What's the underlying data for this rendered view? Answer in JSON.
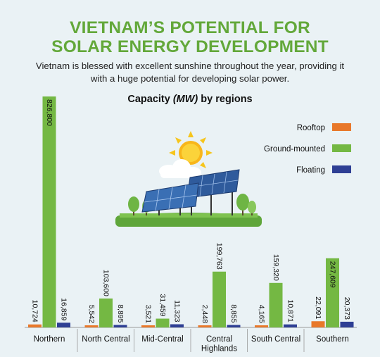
{
  "header": {
    "title_line1": "VIETNAM’S POTENTIAL FOR",
    "title_line2": "SOLAR ENERGY DEVELOPMENT",
    "subtitle_line1": "Vietnam is blessed with excellent sunshine throughout the year, providing it",
    "subtitle_line2": "with a huge potential for developing solar power."
  },
  "chart_data": {
    "type": "bar",
    "title_prefix": "Capacity ",
    "title_unit": "(MW)",
    "title_suffix": " by regions",
    "categories": [
      [
        "Northern"
      ],
      [
        "North Central"
      ],
      [
        "Mid-Central"
      ],
      [
        "Central",
        "Highlands"
      ],
      [
        "South Central"
      ],
      [
        "Southern"
      ]
    ],
    "series": [
      {
        "name": "Rooftop",
        "color": "#e8782a",
        "values": [
          10.724,
          5.542,
          3.521,
          2.448,
          4.165,
          22.091
        ],
        "labels": [
          "10,724",
          "5,542",
          "3,521",
          "2,448",
          "4,165",
          "22,091"
        ]
      },
      {
        "name": "Ground-mounted",
        "color": "#74b843",
        "values": [
          826.8,
          103.6,
          31.459,
          199.763,
          159.32,
          247.609
        ],
        "labels": [
          "826,800",
          "103,600",
          "31,459",
          "199,763",
          "159,320",
          "247,609"
        ]
      },
      {
        "name": "Floating",
        "color": "#2e3f94",
        "values": [
          16.859,
          8.895,
          11.323,
          8.855,
          10.871,
          20.373
        ],
        "labels": [
          "16,859",
          "8,895",
          "11,323",
          "8,855",
          "10,871",
          "20,373"
        ]
      }
    ],
    "legend_position": "right"
  },
  "colors": {
    "title": "#63a83a",
    "background": "#eaf2f5",
    "axis": "#999999"
  },
  "illustration": {
    "icon": "solar-panels-with-sun-icon"
  }
}
